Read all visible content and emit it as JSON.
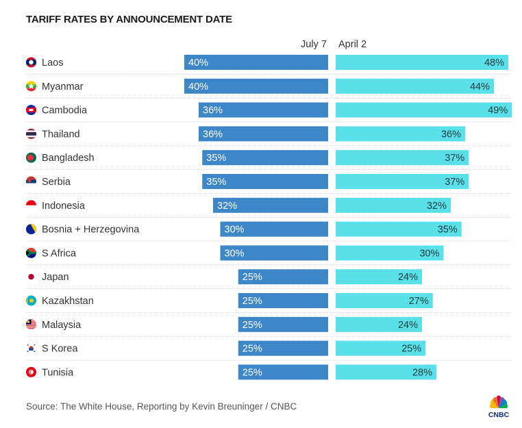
{
  "chart_data": {
    "type": "bar",
    "orientation": "horizontal",
    "title": "TARIFF RATES BY ANNOUNCEMENT DATE",
    "categories": [
      "Laos",
      "Myanmar",
      "Cambodia",
      "Thailand",
      "Bangladesh",
      "Serbia",
      "Indonesia",
      "Bosnia + Herzegovina",
      "S Africa",
      "Japan",
      "Kazakhstan",
      "Malaysia",
      "S Korea",
      "Tunisia"
    ],
    "series": [
      {
        "name": "July 7",
        "color": "#3d87c9",
        "label_color": "#ffffff",
        "values": [
          40,
          40,
          36,
          36,
          35,
          35,
          32,
          30,
          30,
          25,
          25,
          25,
          25,
          25
        ],
        "labels": [
          "40%",
          "40%",
          "36%",
          "36%",
          "35%",
          "35%",
          "32%",
          "30%",
          "30%",
          "25%",
          "25%",
          "25%",
          "25%",
          "25%"
        ]
      },
      {
        "name": "April 2",
        "color": "#5ae0e8",
        "label_color": "#1e3a3f",
        "values": [
          48,
          44,
          49,
          36,
          37,
          37,
          32,
          35,
          30,
          24,
          27,
          24,
          25,
          28
        ],
        "labels": [
          "48%",
          "44%",
          "49%",
          "36%",
          "37%",
          "37%",
          "32%",
          "35%",
          "30%",
          "24%",
          "27%",
          "24%",
          "25%",
          "28%"
        ]
      }
    ],
    "flags": [
      "laos-flag",
      "myanmar-flag",
      "cambodia-flag",
      "thailand-flag",
      "bangladesh-flag",
      "serbia-flag",
      "indonesia-flag",
      "bosnia-flag",
      "south-africa-flag",
      "japan-flag",
      "kazakhstan-flag",
      "malaysia-flag",
      "south-korea-flag",
      "tunisia-flag"
    ],
    "xlim": [
      0,
      50
    ],
    "grid": "dotted row separators",
    "legend": "column headers above bars"
  },
  "footer": {
    "source": "Source: The White House, Reporting by Kevin Breuninger / CNBC",
    "logo_text": "CNBC"
  }
}
